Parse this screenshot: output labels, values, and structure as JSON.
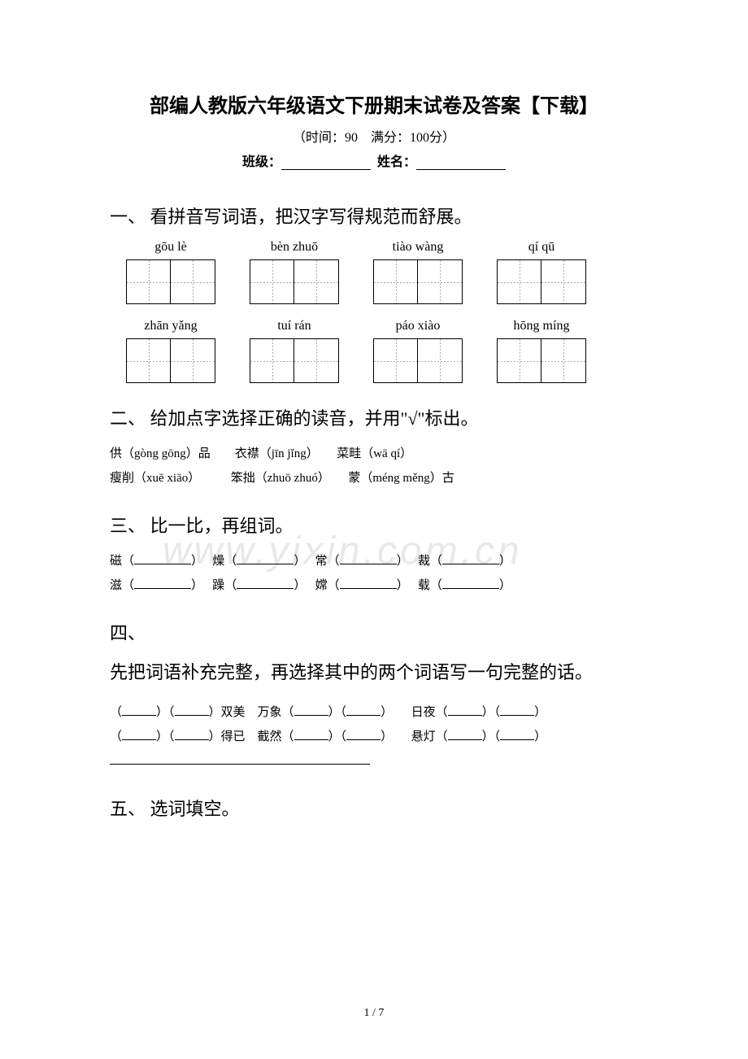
{
  "title": "部编人教版六年级语文下册期末试卷及答案【下载】",
  "subtitle": "（时间：90　满分：100分）",
  "labels": {
    "class": "班级：",
    "name": "姓名："
  },
  "sections": {
    "s1": {
      "heading": "一、 看拼音写词语，把汉字写得规范而舒展。",
      "row1": [
        "gōu lè",
        "bèn zhuō",
        "tiào wàng",
        "qí qū"
      ],
      "row2": [
        "zhān yǎng",
        "tuí rán",
        "páo xiào",
        "hōng míng"
      ]
    },
    "s2": {
      "heading": "二、 给加点字选择正确的读音，并用\"√\"标出。",
      "line1a": "供（gòng gōng）品",
      "line1b": "衣襟（jīn jǐng）",
      "line1c": "菜畦（wā qí）",
      "line2a": "瘦削（xuē xiāo）",
      "line2b": "笨拙（zhuō zhuó）",
      "line2c": "蒙（méng měng）古"
    },
    "s3": {
      "heading": "三、 比一比，再组词。",
      "r1": [
        "磁（",
        "）",
        "燥（",
        "）",
        "常（",
        "）",
        "裁（",
        "）"
      ],
      "r2": [
        "滋（",
        "）",
        "躁（",
        "）",
        "嫦（",
        "）",
        "载（",
        "）"
      ]
    },
    "s4": {
      "heading1": "四、",
      "heading2": "先把词语补充完整，再选择其中的两个词语写一句完整的话。",
      "l1": [
        "（",
        "）（",
        "）双美　万象（",
        "）（",
        "）　　日夜（",
        "）（",
        "）"
      ],
      "l2": [
        "（",
        "）（",
        "）得已　截然（",
        "）（",
        "）　　悬灯（",
        "）（",
        "）"
      ]
    },
    "s5": {
      "heading": "五、 选词填空。"
    }
  },
  "watermark": "www.yixin.com.cn",
  "footer": "1 / 7"
}
